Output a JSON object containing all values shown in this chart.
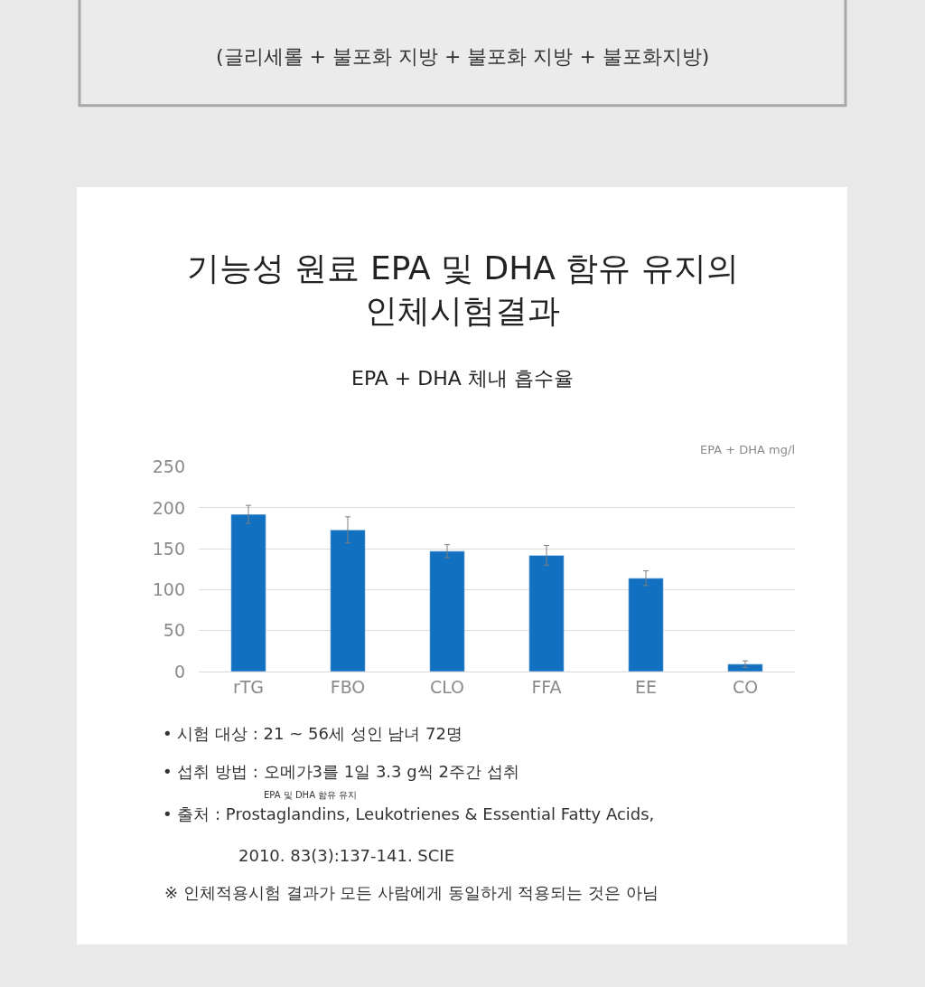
{
  "chart_data": {
    "type": "bar",
    "title": "기능성 원료 EPA 및 DHA 함유 유지의\n인체시험결과",
    "subtitle": "EPA + DHA 체내 흡수율",
    "ylabel": "EPA + DHA mg/l",
    "categories": [
      "rTG",
      "FBO",
      "CLO",
      "FFA",
      "EE",
      "CO"
    ],
    "values": [
      192,
      173,
      147,
      142,
      114,
      9
    ],
    "errors": [
      11,
      16,
      8,
      12,
      9,
      4
    ],
    "color": "#1170c0",
    "ylim": [
      0,
      250
    ],
    "yticks": [
      0,
      50,
      100,
      150,
      200,
      250
    ],
    "grid": "y",
    "annotations": [
      "(글리세롤 + 불포화 지방 + 불포화 지방 + 불포화지방)",
      "• 시험 대상 : 21 ~ 56세 성인 남녀 72명",
      "• 섭취 방법 : 오메가3를 1일 3.3 g씩 2주간 섭취",
      "EPA 및 DHA 함유 유지",
      "• 출처 : Prostaglandins, Leukotrienes & Essential Fatty Acids,",
      "2010. 83(3):137-141. SCIE",
      "※ 인체적용시험 결과가 모든 사람에게 동일하게 적용되는 것은 아님"
    ]
  }
}
